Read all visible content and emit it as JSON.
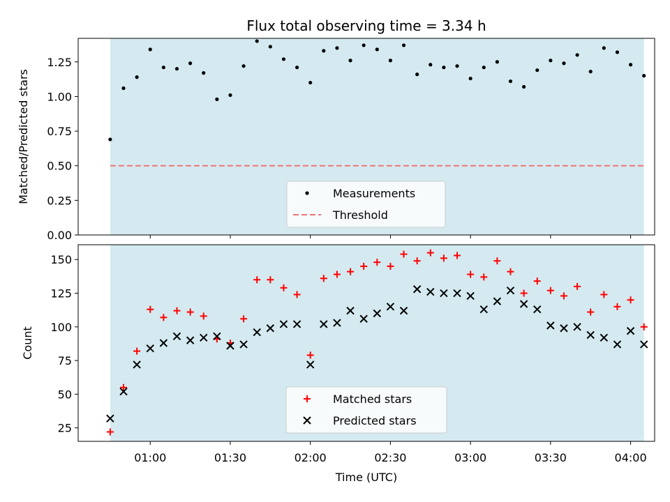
{
  "chart_data": [
    {
      "type": "scatter",
      "title": "Flux total observing time = 3.34 h",
      "xlabel": "",
      "ylabel": "Matched/Predicted stars",
      "ylim": [
        0,
        1.42
      ],
      "yticks": [
        "0.00",
        "0.25",
        "0.50",
        "0.75",
        "1.00",
        "1.25"
      ],
      "ytick_values": [
        0,
        0.25,
        0.5,
        0.75,
        1.0,
        1.25
      ],
      "observing_window": [
        "00:45",
        "04:05"
      ],
      "shade_color": "#d4eaf0",
      "threshold": 0.5,
      "threshold_color": "#f07474",
      "legend_position": "lower center",
      "series": [
        {
          "name": "Measurements",
          "marker": "dot",
          "color": "#000000",
          "x": [
            "00:45",
            "00:50",
            "00:55",
            "01:00",
            "01:05",
            "01:10",
            "01:15",
            "01:20",
            "01:25",
            "01:30",
            "01:35",
            "01:40",
            "01:45",
            "01:50",
            "01:55",
            "02:00",
            "02:05",
            "02:10",
            "02:15",
            "02:20",
            "02:25",
            "02:30",
            "02:35",
            "02:40",
            "02:45",
            "02:50",
            "02:55",
            "03:00",
            "03:05",
            "03:10",
            "03:15",
            "03:20",
            "03:25",
            "03:30",
            "03:35",
            "03:40",
            "03:45",
            "03:50",
            "03:55",
            "04:00",
            "04:05"
          ],
          "values": [
            0.69,
            1.06,
            1.14,
            1.34,
            1.21,
            1.2,
            1.24,
            1.17,
            0.98,
            1.01,
            1.22,
            1.4,
            1.36,
            1.27,
            1.21,
            1.1,
            1.33,
            1.35,
            1.26,
            1.37,
            1.34,
            1.26,
            1.37,
            1.16,
            1.23,
            1.21,
            1.22,
            1.13,
            1.21,
            1.25,
            1.11,
            1.07,
            1.19,
            1.26,
            1.24,
            1.3,
            1.18,
            1.35,
            1.32,
            1.23,
            1.15
          ]
        },
        {
          "name": "Threshold",
          "marker": "dashed-line",
          "color": "#f07474"
        }
      ]
    },
    {
      "type": "scatter",
      "title": "",
      "xlabel": "Time (UTC)",
      "ylabel": "Count",
      "ylim": [
        15,
        161
      ],
      "yticks": [
        "25",
        "50",
        "75",
        "100",
        "125",
        "150"
      ],
      "ytick_values": [
        25,
        50,
        75,
        100,
        125,
        150
      ],
      "xticks": [
        "01:00",
        "01:30",
        "02:00",
        "02:30",
        "03:00",
        "03:30",
        "04:00"
      ],
      "xlim": [
        "00:33",
        "04:09"
      ],
      "observing_window": [
        "00:45",
        "04:05"
      ],
      "shade_color": "#d4eaf0",
      "legend_position": "lower center",
      "series": [
        {
          "name": "Matched stars",
          "marker": "plus",
          "color": "#ff0000",
          "x": [
            "00:45",
            "00:50",
            "00:55",
            "01:00",
            "01:05",
            "01:10",
            "01:15",
            "01:20",
            "01:25",
            "01:30",
            "01:35",
            "01:40",
            "01:45",
            "01:50",
            "01:55",
            "02:00",
            "02:05",
            "02:10",
            "02:15",
            "02:20",
            "02:25",
            "02:30",
            "02:35",
            "02:40",
            "02:45",
            "02:50",
            "02:55",
            "03:00",
            "03:05",
            "03:10",
            "03:15",
            "03:20",
            "03:25",
            "03:30",
            "03:35",
            "03:40",
            "03:45",
            "03:50",
            "03:55",
            "04:00",
            "04:05"
          ],
          "values": [
            22,
            55,
            82,
            113,
            107,
            112,
            111,
            108,
            91,
            88,
            106,
            135,
            135,
            129,
            124,
            79,
            136,
            139,
            141,
            145,
            148,
            145,
            154,
            149,
            155,
            151,
            153,
            139,
            137,
            149,
            141,
            125,
            134,
            127,
            123,
            130,
            111,
            124,
            115,
            120,
            100
          ]
        },
        {
          "name": "Predicted stars",
          "marker": "x",
          "color": "#000000",
          "x": [
            "00:45",
            "00:50",
            "00:55",
            "01:00",
            "01:05",
            "01:10",
            "01:15",
            "01:20",
            "01:25",
            "01:30",
            "01:35",
            "01:40",
            "01:45",
            "01:50",
            "01:55",
            "02:00",
            "02:05",
            "02:10",
            "02:15",
            "02:20",
            "02:25",
            "02:30",
            "02:35",
            "02:40",
            "02:45",
            "02:50",
            "02:55",
            "03:00",
            "03:05",
            "03:10",
            "03:15",
            "03:20",
            "03:25",
            "03:30",
            "03:35",
            "03:40",
            "03:45",
            "03:50",
            "03:55",
            "04:00",
            "04:05"
          ],
          "values": [
            32,
            52,
            72,
            84,
            88,
            93,
            90,
            92,
            93,
            86,
            87,
            96,
            99,
            102,
            102,
            72,
            102,
            103,
            112,
            106,
            110,
            115,
            112,
            128,
            126,
            125,
            125,
            123,
            113,
            119,
            127,
            117,
            113,
            101,
            99,
            100,
            94,
            92,
            87,
            97,
            87
          ]
        }
      ]
    }
  ]
}
